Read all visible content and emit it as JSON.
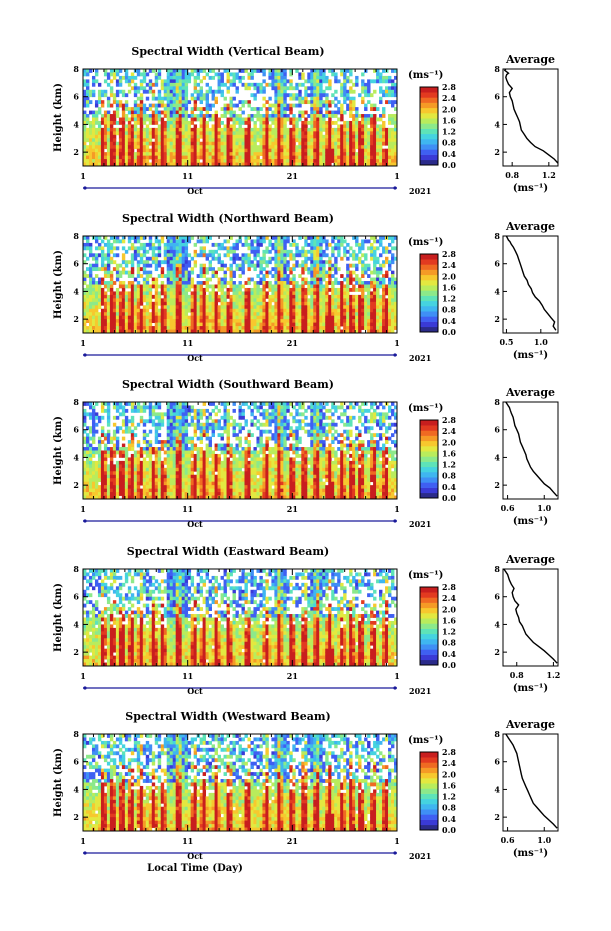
{
  "colors": {
    "colormap": [
      "#2b2b8a",
      "#3a3ad6",
      "#3f5ff2",
      "#3f8ff5",
      "#3fb6f0",
      "#45d3e0",
      "#5ee3b8",
      "#8ce98a",
      "#b9ec5c",
      "#e3e840",
      "#f7c82e",
      "#f59a26",
      "#ef6a22",
      "#e23a20",
      "#c81e1e"
    ],
    "line": "#000000",
    "beam_highlight": "#e02020"
  },
  "chart_data": [
    {
      "type": "heatmap",
      "title": "Spectral Width (Vertical Beam)",
      "ylabel": "Height (km)",
      "xlabel": "",
      "x_ticks": [
        "1",
        "11",
        "21",
        "1"
      ],
      "x_sublabel": "Oct",
      "year_label": "2021",
      "y_ticks": [
        "2",
        "4",
        "6",
        "8"
      ],
      "ylim": [
        1,
        8
      ],
      "colorbar": {
        "unit": "(ms⁻¹)",
        "ticks": [
          "0.0",
          "0.4",
          "0.8",
          "1.2",
          "1.6",
          "2.0",
          "2.4",
          "2.8"
        ],
        "range": [
          0,
          2.8
        ]
      },
      "average": {
        "title": "Average",
        "xlabel": "(ms⁻¹)",
        "x_ticks": [
          "0.8",
          "1.2"
        ],
        "xlim": [
          0.7,
          1.3
        ],
        "y_ticks": [
          "2",
          "4",
          "6",
          "8"
        ],
        "ylim": [
          1,
          8
        ],
        "x": [
          1.3,
          1.26,
          1.2,
          1.14,
          1.05,
          1.0,
          0.96,
          0.93,
          0.9,
          0.89,
          0.88,
          0.86,
          0.84,
          0.82,
          0.81,
          0.8,
          0.78,
          0.77,
          0.8,
          0.76,
          0.74,
          0.73,
          0.74,
          0.76,
          0.74,
          0.72,
          0.73
        ],
        "y": [
          1.2,
          1.5,
          1.8,
          2.1,
          2.4,
          2.7,
          3.0,
          3.3,
          3.6,
          3.9,
          4.2,
          4.5,
          4.8,
          5.1,
          5.4,
          5.7,
          6.0,
          6.3,
          6.6,
          6.9,
          7.2,
          7.4,
          7.6,
          7.7,
          7.8,
          7.9,
          8.0
        ]
      }
    },
    {
      "type": "heatmap",
      "title": "Spectral Width (Northward Beam)",
      "ylabel": "Height (km)",
      "xlabel": "",
      "x_ticks": [
        "1",
        "11",
        "21",
        "1"
      ],
      "x_sublabel": "Oct",
      "year_label": "2021",
      "y_ticks": [
        "2",
        "4",
        "6",
        "8"
      ],
      "ylim": [
        1,
        8
      ],
      "colorbar": {
        "unit": "(ms⁻¹)",
        "ticks": [
          "0.0",
          "0.4",
          "0.8",
          "1.2",
          "1.6",
          "2.0",
          "2.4",
          "2.8"
        ],
        "range": [
          0,
          2.8
        ]
      },
      "average": {
        "title": "Average",
        "xlabel": "(ms⁻¹)",
        "x_ticks": [
          "0.5",
          "1.0"
        ],
        "xlim": [
          0.45,
          1.25
        ],
        "y_ticks": [
          "2",
          "4",
          "6",
          "8"
        ],
        "ylim": [
          1,
          8
        ],
        "x": [
          1.22,
          1.18,
          1.2,
          1.15,
          1.1,
          1.05,
          1.02,
          0.98,
          0.92,
          0.88,
          0.86,
          0.82,
          0.8,
          0.76,
          0.74,
          0.72,
          0.7,
          0.68,
          0.66,
          0.63,
          0.6,
          0.57,
          0.55,
          0.53,
          0.52,
          0.51,
          0.5
        ],
        "y": [
          1.2,
          1.5,
          1.8,
          2.1,
          2.4,
          2.7,
          3.0,
          3.3,
          3.6,
          3.9,
          4.2,
          4.5,
          4.8,
          5.1,
          5.4,
          5.7,
          6.0,
          6.3,
          6.6,
          6.9,
          7.2,
          7.4,
          7.6,
          7.7,
          7.8,
          7.9,
          8.0
        ]
      }
    },
    {
      "type": "heatmap",
      "title": "Spectral Width (Southward Beam)",
      "ylabel": "Height (km)",
      "xlabel": "",
      "x_ticks": [
        "1",
        "11",
        "21",
        "1"
      ],
      "x_sublabel": "Oct",
      "year_label": "2021",
      "y_ticks": [
        "2",
        "4",
        "6",
        "8"
      ],
      "ylim": [
        1,
        8
      ],
      "colorbar": {
        "unit": "(ms⁻¹)",
        "ticks": [
          "0.0",
          "0.4",
          "0.8",
          "1.2",
          "1.6",
          "2.0",
          "2.4",
          "2.8"
        ],
        "range": [
          0,
          2.8
        ]
      },
      "average": {
        "title": "Average",
        "xlabel": "(ms⁻¹)",
        "x_ticks": [
          "0.6",
          "1.0"
        ],
        "xlim": [
          0.55,
          1.15
        ],
        "y_ticks": [
          "2",
          "4",
          "6",
          "8"
        ],
        "ylim": [
          1,
          8
        ],
        "x": [
          1.14,
          1.1,
          1.06,
          1.0,
          0.96,
          0.92,
          0.88,
          0.85,
          0.83,
          0.81,
          0.8,
          0.78,
          0.76,
          0.74,
          0.73,
          0.72,
          0.7,
          0.68,
          0.67,
          0.66,
          0.64,
          0.63,
          0.62,
          0.61,
          0.6,
          0.59,
          0.58
        ],
        "y": [
          1.2,
          1.5,
          1.8,
          2.1,
          2.4,
          2.7,
          3.0,
          3.3,
          3.6,
          3.9,
          4.2,
          4.5,
          4.8,
          5.1,
          5.4,
          5.7,
          6.0,
          6.3,
          6.6,
          6.9,
          7.2,
          7.4,
          7.6,
          7.7,
          7.8,
          7.9,
          8.0
        ]
      }
    },
    {
      "type": "heatmap",
      "title": "Spectral Width (Eastward Beam)",
      "ylabel": "Height (km)",
      "xlabel": "",
      "x_ticks": [
        "1",
        "11",
        "21",
        "1"
      ],
      "x_sublabel": "Oct",
      "year_label": "2021",
      "y_ticks": [
        "2",
        "4",
        "6",
        "8"
      ],
      "ylim": [
        1,
        8
      ],
      "colorbar": {
        "unit": "(ms⁻¹)",
        "ticks": [
          "0.0",
          "0.4",
          "0.8",
          "1.2",
          "1.6",
          "2.0",
          "2.4",
          "2.8"
        ],
        "range": [
          0,
          2.8
        ]
      },
      "average": {
        "title": "Average",
        "xlabel": "(ms⁻¹)",
        "x_ticks": [
          "0.8",
          "1.2"
        ],
        "xlim": [
          0.65,
          1.25
        ],
        "y_ticks": [
          "2",
          "4",
          "6",
          "8"
        ],
        "ylim": [
          1,
          8
        ],
        "x": [
          1.24,
          1.2,
          1.15,
          1.1,
          1.04,
          0.98,
          0.94,
          0.9,
          0.88,
          0.86,
          0.83,
          0.82,
          0.8,
          0.79,
          0.82,
          0.78,
          0.76,
          0.75,
          0.77,
          0.74,
          0.72,
          0.71,
          0.7,
          0.69,
          0.68,
          0.67,
          0.66
        ],
        "y": [
          1.2,
          1.5,
          1.8,
          2.1,
          2.4,
          2.7,
          3.0,
          3.3,
          3.6,
          3.9,
          4.2,
          4.5,
          4.8,
          5.1,
          5.4,
          5.7,
          6.0,
          6.3,
          6.6,
          6.9,
          7.2,
          7.4,
          7.6,
          7.7,
          7.8,
          7.9,
          8.0
        ]
      }
    },
    {
      "type": "heatmap",
      "title": "Spectral Width (Westward Beam)",
      "ylabel": "Height (km)",
      "xlabel": "Local Time (Day)",
      "x_ticks": [
        "1",
        "11",
        "21",
        "1"
      ],
      "x_sublabel": "Oct",
      "year_label": "2021",
      "y_ticks": [
        "2",
        "4",
        "6",
        "8"
      ],
      "ylim": [
        1,
        8
      ],
      "colorbar": {
        "unit": "(ms⁻¹)",
        "ticks": [
          "0.0",
          "0.4",
          "0.8",
          "1.2",
          "1.6",
          "2.0",
          "2.4",
          "2.8"
        ],
        "range": [
          0,
          2.8
        ]
      },
      "average": {
        "title": "Average",
        "xlabel": "(ms⁻¹)",
        "x_ticks": [
          "0.6",
          "1.0"
        ],
        "xlim": [
          0.55,
          1.15
        ],
        "y_ticks": [
          "2",
          "4",
          "6",
          "8"
        ],
        "ylim": [
          1,
          8
        ],
        "x": [
          1.14,
          1.1,
          1.05,
          1.0,
          0.96,
          0.92,
          0.88,
          0.86,
          0.84,
          0.82,
          0.8,
          0.78,
          0.76,
          0.75,
          0.74,
          0.73,
          0.72,
          0.71,
          0.7,
          0.68,
          0.66,
          0.64,
          0.62,
          0.61,
          0.6,
          0.59,
          0.58
        ],
        "y": [
          1.2,
          1.5,
          1.8,
          2.1,
          2.4,
          2.7,
          3.0,
          3.3,
          3.6,
          3.9,
          4.2,
          4.5,
          4.8,
          5.1,
          5.4,
          5.7,
          6.0,
          6.3,
          6.6,
          6.9,
          7.2,
          7.4,
          7.6,
          7.7,
          7.8,
          7.9,
          8.0
        ]
      }
    }
  ]
}
